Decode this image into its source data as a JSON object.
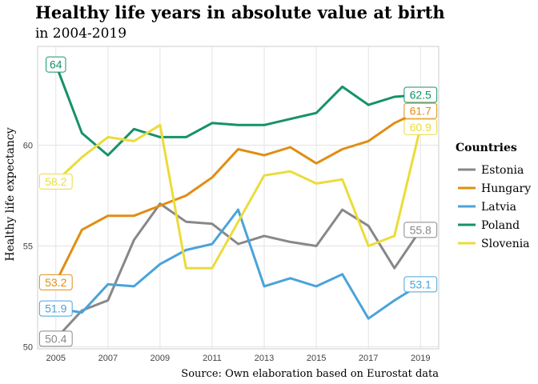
{
  "chart_data": {
    "type": "line",
    "title": "Healthy life years in absolute value at birth",
    "subtitle": "in 2004-2019",
    "ylabel": "Healthy life expectancy",
    "xlabel": "",
    "caption": "Source: Own elaboration based on Eurostat data",
    "x": [
      2005,
      2006,
      2007,
      2008,
      2009,
      2010,
      2011,
      2012,
      2013,
      2014,
      2015,
      2016,
      2017,
      2018,
      2019
    ],
    "xticks": [
      2005,
      2007,
      2009,
      2011,
      2013,
      2015,
      2017,
      2019
    ],
    "yticks": [
      50,
      55,
      60
    ],
    "xlim": [
      2004.3,
      2019.7
    ],
    "ylim": [
      49.9,
      64.9
    ],
    "grid": true,
    "legend": {
      "title": "Countries",
      "position": "right"
    },
    "series": [
      {
        "name": "Estonia",
        "color": "#888888",
        "values": [
          50.4,
          51.8,
          52.3,
          55.3,
          57.1,
          56.2,
          56.1,
          55.1,
          55.5,
          55.2,
          55.0,
          56.8,
          56.0,
          53.9,
          55.8
        ],
        "start_label": "50.4",
        "end_label": "55.8"
      },
      {
        "name": "Hungary",
        "color": "#E08E14",
        "values": [
          53.2,
          55.8,
          56.5,
          56.5,
          57.0,
          57.5,
          58.4,
          59.8,
          59.5,
          59.9,
          59.1,
          59.8,
          60.2,
          61.1,
          61.7
        ],
        "start_label": "53.2",
        "end_label": "61.7"
      },
      {
        "name": "Latvia",
        "color": "#4BA3DA",
        "values": [
          51.9,
          51.7,
          53.1,
          53.0,
          54.1,
          54.8,
          55.1,
          56.8,
          53.0,
          53.4,
          53.0,
          53.6,
          51.4,
          52.3,
          53.1
        ],
        "start_label": "51.9",
        "end_label": "53.1"
      },
      {
        "name": "Poland",
        "color": "#16926A",
        "values": [
          64.0,
          60.6,
          59.5,
          60.8,
          60.4,
          60.4,
          61.1,
          61.0,
          61.0,
          61.3,
          61.6,
          62.9,
          62.0,
          62.4,
          62.5
        ],
        "start_label": "64",
        "end_label": "62.5"
      },
      {
        "name": "Slovenia",
        "color": "#EBDC3A",
        "values": [
          58.2,
          59.4,
          60.4,
          60.2,
          61.0,
          53.9,
          53.9,
          56.2,
          58.5,
          58.7,
          58.1,
          58.3,
          55.0,
          55.5,
          60.9
        ],
        "start_label": "58.2",
        "end_label": "60.9"
      }
    ]
  }
}
